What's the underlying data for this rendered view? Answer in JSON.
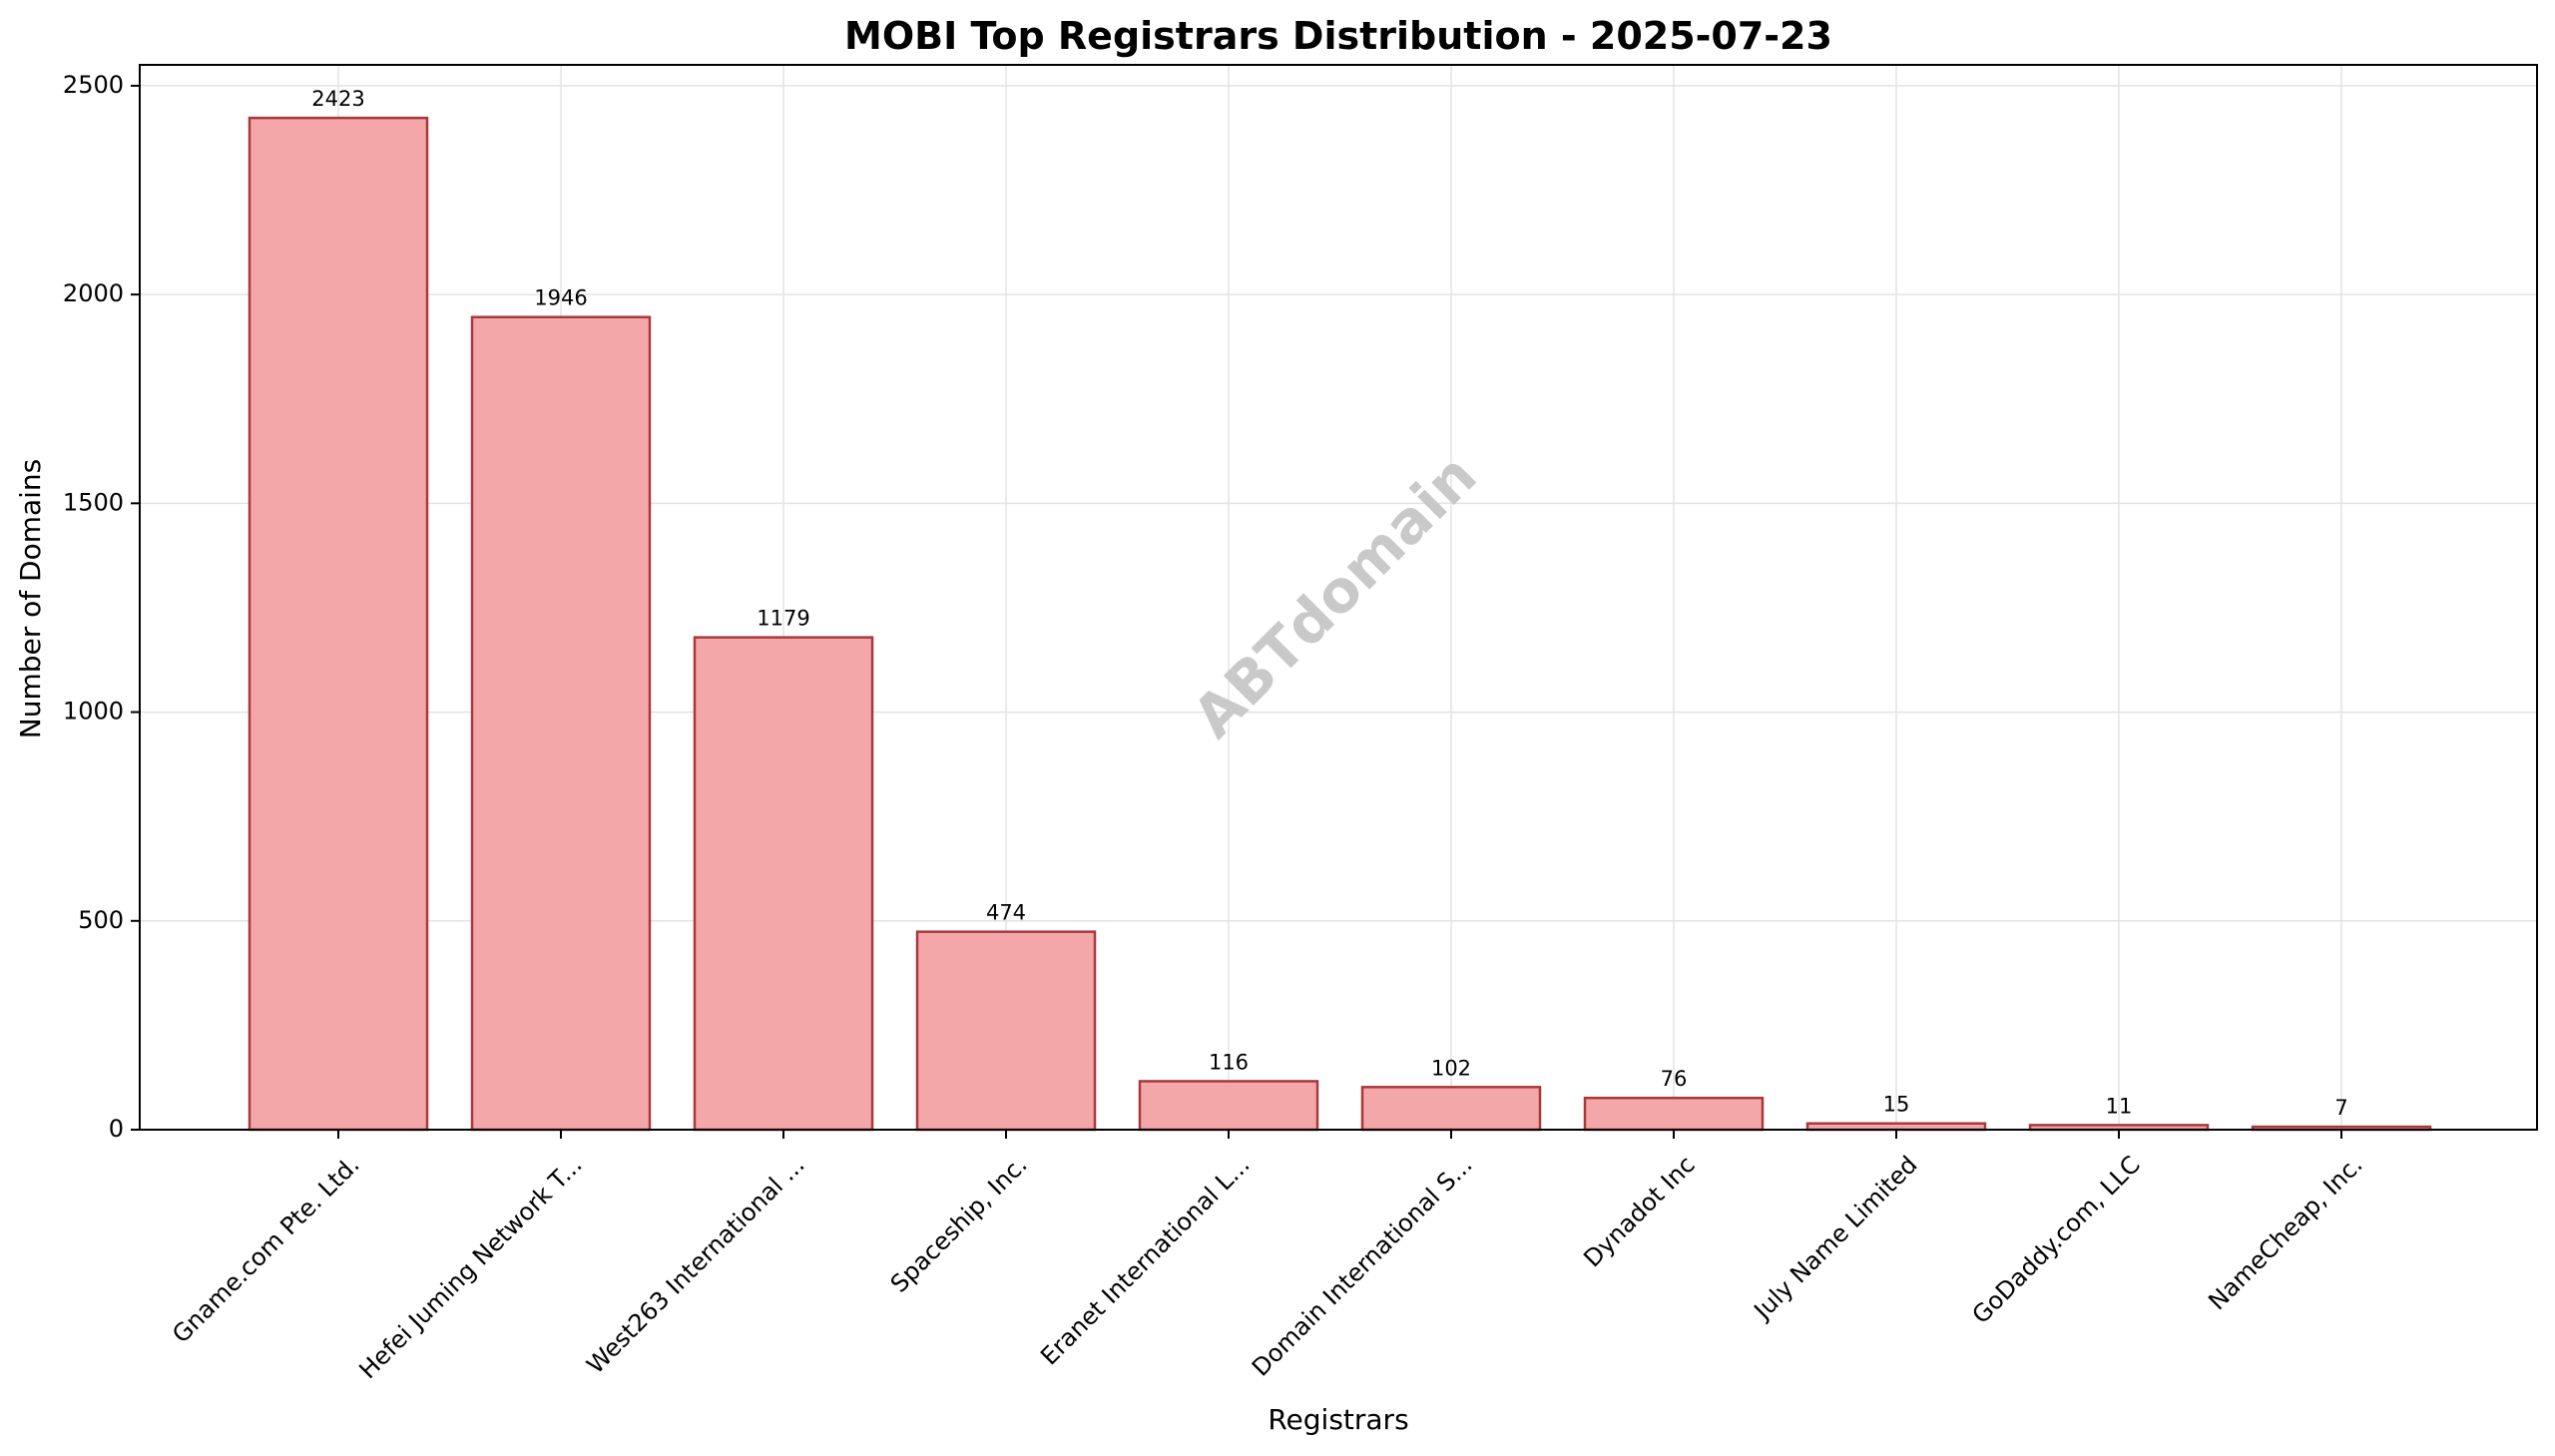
{
  "chart_data": {
    "type": "bar",
    "title": "MOBI Top Registrars Distribution - 2025-07-23",
    "xlabel": "Registrars",
    "ylabel": "Number of Domains",
    "categories": [
      "Gname.com Pte. Ltd.",
      "Hefei Juming Network T...",
      "West263 International ...",
      "Spaceship, Inc.",
      "Eranet International L...",
      "Domain International S...",
      "Dynadot Inc",
      "July Name Limited",
      "GoDaddy.com, LLC",
      "NameCheap, Inc."
    ],
    "values": [
      2423,
      1946,
      1179,
      474,
      116,
      102,
      76,
      15,
      11,
      7
    ],
    "data_labels": [
      "2423",
      "1946",
      "1179",
      "474",
      "116",
      "102",
      "76",
      "15",
      "11",
      "7"
    ],
    "ylim": [
      0,
      2550
    ],
    "yticks": [
      0,
      500,
      1000,
      1500,
      2000,
      2500
    ],
    "ytick_labels": [
      "0",
      "500",
      "1000",
      "1500",
      "2000",
      "2500"
    ],
    "grid": true,
    "legend": "none",
    "watermark": "ABTdomain",
    "colors": {
      "bar_fill": "#f4a7a8",
      "bar_edge": "#a8383c",
      "grid": "#e3e3e3",
      "axis": "#000000",
      "watermark": "#c9c9c9"
    }
  }
}
